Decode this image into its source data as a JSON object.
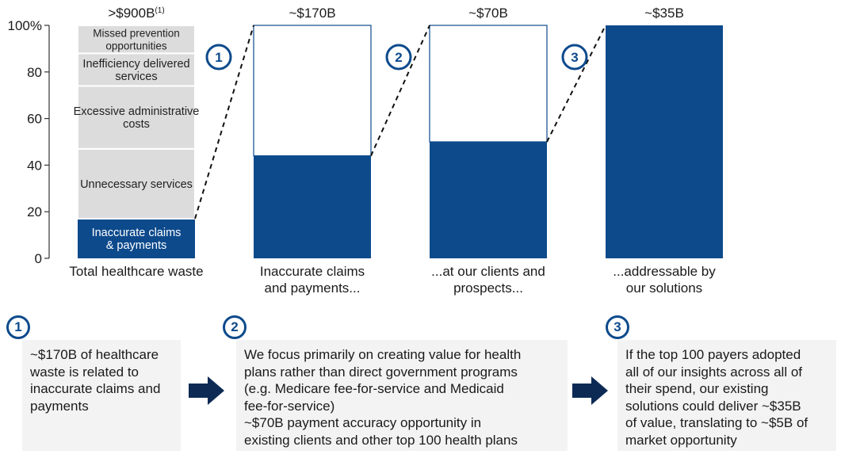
{
  "chart_data": {
    "type": "bar",
    "ylim": [
      0,
      100
    ],
    "yticks": [
      {
        "value": 0,
        "label": "0"
      },
      {
        "value": 20,
        "label": "20"
      },
      {
        "value": 40,
        "label": "40"
      },
      {
        "value": 60,
        "label": "60"
      },
      {
        "value": 80,
        "label": "80"
      },
      {
        "value": 100,
        "label": "100%"
      }
    ],
    "colors": {
      "primary": "#0d4a8c",
      "gray": "#dcdcdc",
      "white": "#ffffff",
      "text": "#1a1a1a"
    },
    "bars": [
      {
        "category": "Total healthcare waste",
        "top_label": ">$900B",
        "footnote": "(1)",
        "segments": [
          {
            "label": "Inaccurate claims & payments",
            "start": 0,
            "end": 17,
            "color": "primary"
          },
          {
            "label": "Unnecessary services",
            "start": 17,
            "end": 47,
            "color": "gray"
          },
          {
            "label": "Excessive administrative costs",
            "start": 47,
            "end": 74,
            "color": "gray"
          },
          {
            "label": "Inefficiency delivered services",
            "start": 74,
            "end": 88,
            "color": "gray"
          },
          {
            "label": "Missed prevention opportunities",
            "start": 88,
            "end": 100,
            "color": "gray"
          }
        ]
      },
      {
        "category": "Inaccurate claims and payments...",
        "top_label": "~$170B",
        "segments": [
          {
            "label": "",
            "start": 0,
            "end": 44,
            "color": "primary"
          },
          {
            "label": "",
            "start": 44,
            "end": 100,
            "color": "white"
          }
        ]
      },
      {
        "category": "...at our clients and prospects...",
        "top_label": "~$70B",
        "segments": [
          {
            "label": "",
            "start": 0,
            "end": 50,
            "color": "primary"
          },
          {
            "label": "",
            "start": 50,
            "end": 100,
            "color": "white"
          }
        ]
      },
      {
        "category": "...addressable by our solutions",
        "top_label": "~$35B",
        "segments": [
          {
            "label": "",
            "start": 0,
            "end": 100,
            "color": "primary"
          }
        ]
      }
    ],
    "step_markers": [
      "1",
      "2",
      "3"
    ]
  },
  "notes": [
    {
      "number": "1",
      "lines": [
        "~$170B of healthcare",
        "waste is related to",
        "inaccurate claims and",
        "payments"
      ]
    },
    {
      "number": "2",
      "lines": [
        "We focus primarily on creating value for health",
        "plans rather than direct government programs",
        "(e.g. Medicare fee-for-service and Medicaid",
        "fee-for-service)",
        "~$70B payment accuracy opportunity in",
        "existing clients and other top 100 health plans"
      ]
    },
    {
      "number": "3",
      "lines": [
        "If the top 100 payers adopted",
        "all of our insights across all of",
        "their spend, our existing",
        "solutions could deliver ~$35B",
        "of value, translating to ~$5B of",
        "market opportunity"
      ]
    }
  ]
}
